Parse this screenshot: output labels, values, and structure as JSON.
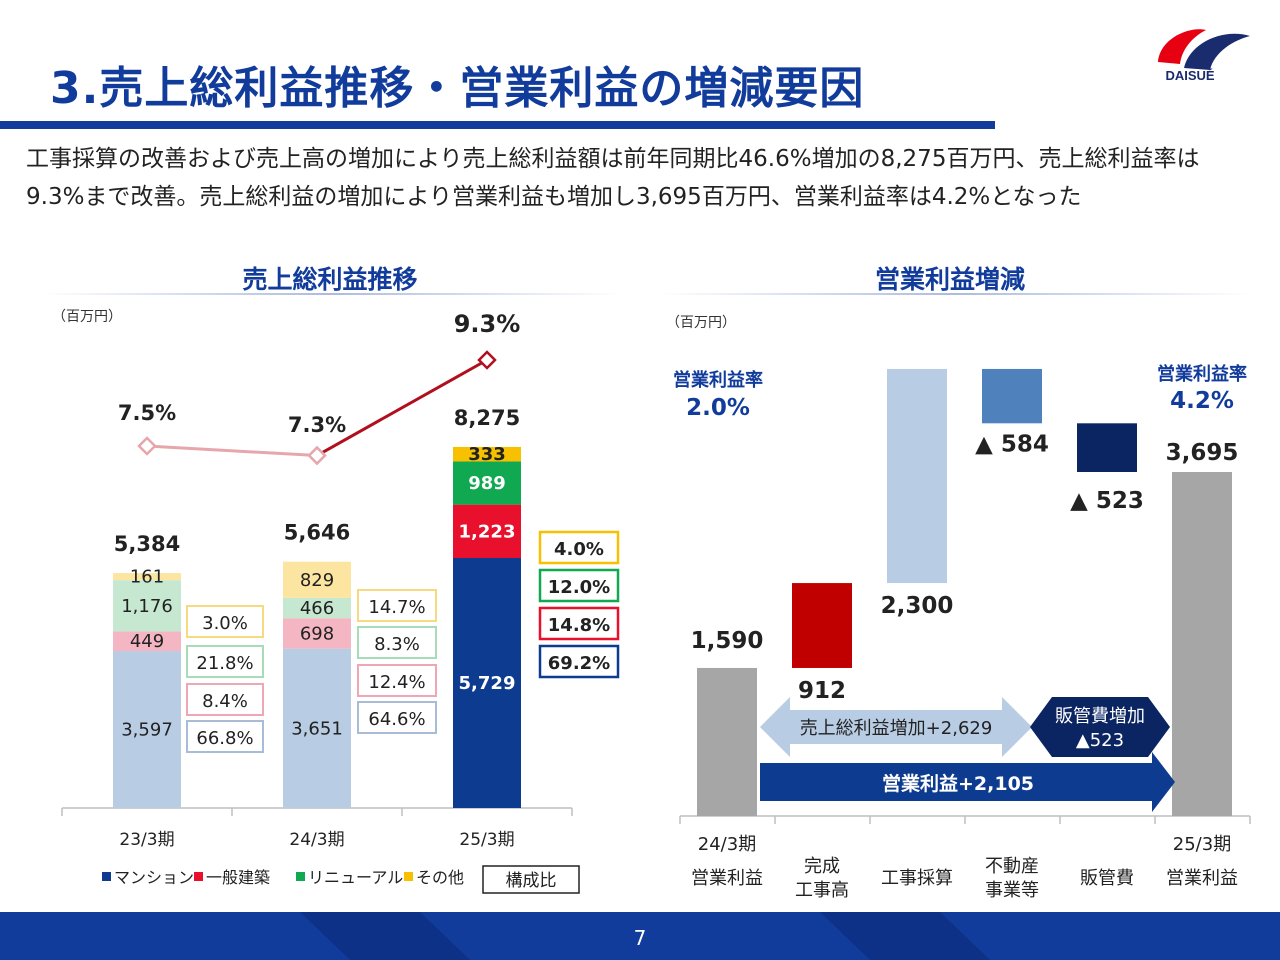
{
  "header": {
    "title": "3.売上総利益推移・営業利益の増減要因",
    "logo_text": "DAISUÉ"
  },
  "summary": "工事採算の改善および売上高の増加により売上総利益額は前年同期比46.6%増加の8,275百万円、売上総利益率は9.3%まで改善。売上総利益の増加により営業利益も増加し3,695百万円、営業利益率は4.2%となった",
  "colors": {
    "brand": "#123c9b",
    "mansion": "#0d3b8f",
    "general": "#e8102c",
    "renewal": "#10a850",
    "other": "#f7c000",
    "gray": "#a6a6a6",
    "light_blue": "#b8cce4",
    "mid_blue": "#4f81bd",
    "navy": "#0b2462",
    "dark_red": "#c00000"
  },
  "page_number": "7",
  "chart_data": [
    {
      "type": "bar",
      "stacked": true,
      "title": "売上総利益推移",
      "unit": "（百万円）",
      "categories": [
        "23/3期",
        "24/3期",
        "25/3期"
      ],
      "series": [
        {
          "name": "マンション",
          "values": [
            3597,
            3651,
            5729
          ],
          "labels": [
            "3,597",
            "3,651",
            "5,729"
          ],
          "color_key": "mansion"
        },
        {
          "name": "一般建築",
          "values": [
            449,
            698,
            1223
          ],
          "labels": [
            "449",
            "698",
            "1,223"
          ],
          "color_key": "general"
        },
        {
          "name": "リニューアル",
          "values": [
            1176,
            466,
            989
          ],
          "labels": [
            "1,176",
            "466",
            "989"
          ],
          "color_key": "renewal"
        },
        {
          "name": "その他",
          "values": [
            161,
            829,
            333
          ],
          "labels": [
            "161",
            "829",
            "333"
          ],
          "color_key": "other"
        }
      ],
      "totals": [
        "5,384",
        "5,646",
        "8,275"
      ],
      "margin_rates": [
        "7.5%",
        "7.3%",
        "9.3%"
      ],
      "margin_rate_values": [
        7.5,
        7.3,
        9.3
      ],
      "composition": [
        [
          "66.8%",
          "8.4%",
          "21.8%",
          "3.0%"
        ],
        [
          "64.6%",
          "12.4%",
          "8.3%",
          "14.7%"
        ],
        [
          "69.2%",
          "14.8%",
          "12.0%",
          "4.0%"
        ]
      ],
      "legend": {
        "items": [
          "マンション",
          "一般建築",
          "リニューアル",
          "その他"
        ],
        "composition_label": "構成比",
        "position": "bottom"
      },
      "ylim": [
        0,
        9000
      ]
    },
    {
      "type": "bar",
      "subtype": "waterfall",
      "title": "営業利益増減",
      "unit": "（百万円）",
      "steps": [
        {
          "key": "start",
          "value": 1590,
          "label": "1,590",
          "category": [
            "24/3期",
            "営業利益"
          ]
        },
        {
          "key": "sales",
          "value": 912,
          "label": "912",
          "category": [
            "完成",
            "工事高"
          ]
        },
        {
          "key": "margin",
          "value": 2300,
          "label": "2,300",
          "category": [
            "工事採算"
          ]
        },
        {
          "key": "realestate",
          "value": -584,
          "label": "▲ 584",
          "category": [
            "不動産",
            "事業等"
          ]
        },
        {
          "key": "sga",
          "value": -523,
          "label": "▲ 523",
          "category": [
            "販管費"
          ]
        },
        {
          "key": "end",
          "value": 3695,
          "label": "3,695",
          "category": [
            "25/3期",
            "営業利益"
          ]
        }
      ],
      "margin_start": {
        "label": "営業利益率",
        "value": "2.0%"
      },
      "margin_end": {
        "label": "営業利益率",
        "value": "4.2%"
      },
      "arrows": {
        "gross_profit": "売上総利益増加+2,629",
        "sga_line1": "販管費増加",
        "sga_line2": "▲523",
        "operating": "営業利益+2,105"
      },
      "ylim": [
        0,
        5000
      ]
    }
  ]
}
